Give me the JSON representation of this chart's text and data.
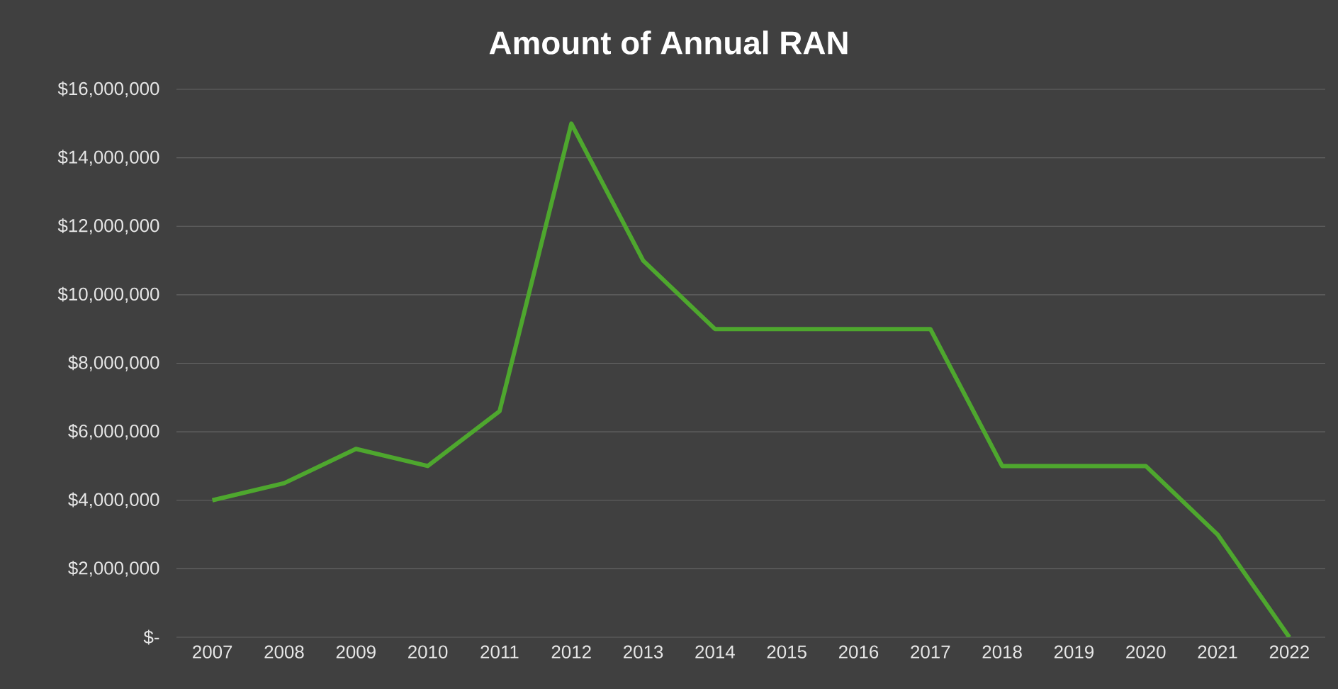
{
  "chart_data": {
    "type": "line",
    "title": "Amount of Annual RAN",
    "categories": [
      "2007",
      "2008",
      "2009",
      "2010",
      "2011",
      "2012",
      "2013",
      "2014",
      "2015",
      "2016",
      "2017",
      "2018",
      "2019",
      "2020",
      "2021",
      "2022"
    ],
    "values": [
      4000000,
      4500000,
      5500000,
      5000000,
      6600000,
      15000000,
      11000000,
      9000000,
      9000000,
      9000000,
      9000000,
      5000000,
      5000000,
      5000000,
      3000000,
      0
    ],
    "color": "#4ea72e",
    "ylim": [
      0,
      16000000
    ],
    "yticks": [
      {
        "value": 0,
        "label": "$-"
      },
      {
        "value": 2000000,
        "label": "$2,000,000"
      },
      {
        "value": 4000000,
        "label": "$4,000,000"
      },
      {
        "value": 6000000,
        "label": "$6,000,000"
      },
      {
        "value": 8000000,
        "label": "$8,000,000"
      },
      {
        "value": 10000000,
        "label": "$10,000,000"
      },
      {
        "value": 12000000,
        "label": "$12,000,000"
      },
      {
        "value": 14000000,
        "label": "$14,000,000"
      },
      {
        "value": 16000000,
        "label": "$16,000,000"
      }
    ],
    "grid": "y"
  }
}
